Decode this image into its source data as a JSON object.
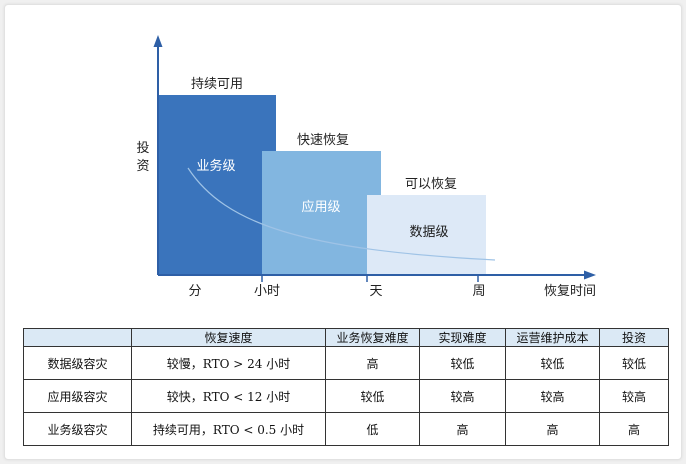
{
  "diagram": {
    "y_axis_label": "投资",
    "x_axis_label": "恢复时间",
    "x_ticks": [
      "分",
      "小时",
      "天",
      "周"
    ],
    "levels": [
      {
        "tier": "业务级",
        "top_label": "持续可用",
        "color": "#3a74bc"
      },
      {
        "tier": "应用级",
        "top_label": "快速恢复",
        "color": "#82b6e0"
      },
      {
        "tier": "数据级",
        "top_label": "可以恢复",
        "color": "#dde9f7"
      }
    ],
    "axis_color": "#2e5fa6"
  },
  "table": {
    "headers": [
      "",
      "恢复速度",
      "业务恢复难度",
      "实现难度",
      "运营维护成本",
      "投资"
    ],
    "rows": [
      [
        "数据级容灾",
        "较慢，RTO > 24 小时",
        "高",
        "较低",
        "较低",
        "较低"
      ],
      [
        "应用级容灾",
        "较快，RTO < 12 小时",
        "较低",
        "较高",
        "较高",
        "较高"
      ],
      [
        "业务级容灾",
        "持续可用，RTO < 0.5 小时",
        "低",
        "高",
        "高",
        "高"
      ]
    ],
    "header_color": "#dbe9f5"
  }
}
